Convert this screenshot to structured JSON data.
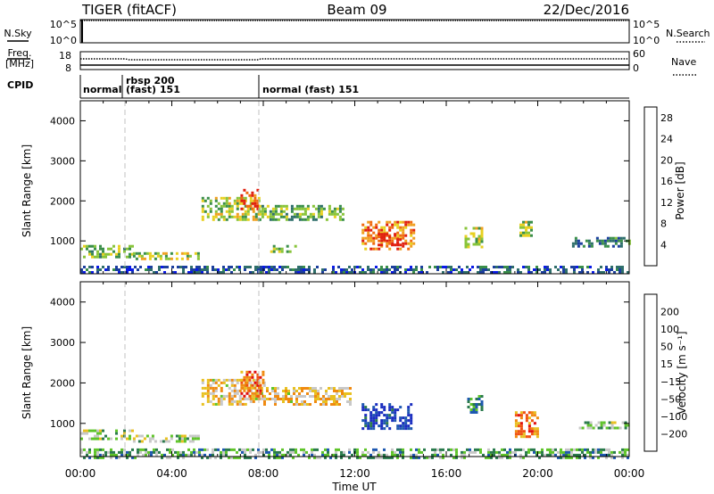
{
  "header": {
    "radar": "TIGER (fitACF)",
    "beam": "Beam 09",
    "date": "22/Dec/2016"
  },
  "top_panels": {
    "nsky_label": "N.Sky",
    "nsky_ticks": [
      "10^5",
      "10^0"
    ],
    "nsearch_label": "N.Search",
    "nsearch_ticks": [
      "10^5",
      "10^0"
    ],
    "freq_label_line1": "Freq.",
    "freq_label_line2": "[MHz]",
    "freq_ticks": [
      "18",
      "8"
    ],
    "nave_label": "Nave",
    "nave_ticks": [
      "60",
      "0"
    ],
    "cpid_label": "CPID",
    "cpid_segments": [
      {
        "label": "normal",
        "start_hour": 0,
        "end_hour": 1.83
      },
      {
        "label": "rbsp 200",
        "label2": "(fast) 151",
        "start_hour": 1.83,
        "end_hour": 8.0
      },
      {
        "label": "normal (fast) 151",
        "start_hour": 8.0,
        "end_hour": 24
      }
    ]
  },
  "chart_data": [
    {
      "type": "heatmap",
      "name": "power",
      "ylabel": "Slant Range [km]",
      "y_ticks": [
        1000,
        2000,
        3000,
        4000
      ],
      "ylim": [
        180,
        4500
      ],
      "xlim_hours": [
        0,
        24
      ],
      "colorbar": {
        "label": "Power [dB]",
        "ticks": [
          4,
          8,
          12,
          16,
          20,
          24,
          28
        ],
        "range": [
          0,
          30
        ],
        "colors": [
          "#0a1ae8",
          "#1c3f9e",
          "#2f6f6b",
          "#3a8f4a",
          "#88c43a",
          "#e8d020",
          "#f0a020",
          "#f06a10",
          "#e02010"
        ]
      },
      "regions": [
        {
          "t0": 0.0,
          "t1": 2.3,
          "r0": 600,
          "r1": 900,
          "level": 0.45
        },
        {
          "t0": 2.3,
          "t1": 5.2,
          "r0": 520,
          "r1": 720,
          "level": 0.55
        },
        {
          "t0": 5.3,
          "t1": 7.8,
          "r0": 1500,
          "r1": 2100,
          "level": 0.55
        },
        {
          "t0": 7.0,
          "t1": 7.8,
          "r0": 1800,
          "r1": 2300,
          "level": 0.9
        },
        {
          "t0": 7.8,
          "t1": 11.5,
          "r0": 1500,
          "r1": 1900,
          "level": 0.45
        },
        {
          "t0": 8.3,
          "t1": 9.4,
          "r0": 700,
          "r1": 900,
          "level": 0.5
        },
        {
          "t0": 12.3,
          "t1": 14.6,
          "r0": 800,
          "r1": 1500,
          "level": 0.8
        },
        {
          "t0": 13.0,
          "t1": 14.0,
          "r0": 900,
          "r1": 1200,
          "level": 1.0
        },
        {
          "t0": 16.8,
          "t1": 17.6,
          "r0": 850,
          "r1": 1350,
          "level": 0.55
        },
        {
          "t0": 19.2,
          "t1": 19.7,
          "r0": 1100,
          "r1": 1500,
          "level": 0.5
        },
        {
          "t0": 21.5,
          "t1": 24.0,
          "r0": 850,
          "r1": 1100,
          "level": 0.3
        },
        {
          "t0": 0.0,
          "t1": 24.0,
          "r0": 180,
          "r1": 380,
          "level": 0.2
        }
      ]
    },
    {
      "type": "heatmap",
      "name": "velocity",
      "ylabel": "Slant Range [km]",
      "y_ticks": [
        1000,
        2000,
        3000,
        4000
      ],
      "ylim": [
        180,
        4500
      ],
      "xlim_hours": [
        0,
        24
      ],
      "colorbar": {
        "label": "Velocity [m s⁻¹]",
        "ticks": [
          "200",
          "100",
          "50",
          "15",
          "−15",
          "−50",
          "−100",
          "−200"
        ],
        "colors": [
          "#1a2ec0",
          "#1e58b0",
          "#2a7a4c",
          "#5fc42a",
          "#c8c8c8",
          "#e8c020",
          "#f08a10",
          "#f05010",
          "#e01010"
        ]
      },
      "regions": [
        {
          "t0": 0.0,
          "t1": 2.3,
          "r0": 650,
          "r1": 850,
          "level": 0.45
        },
        {
          "t0": 2.3,
          "t1": 5.2,
          "r0": 560,
          "r1": 720,
          "level": 0.45
        },
        {
          "t0": 5.3,
          "t1": 8.0,
          "r0": 1500,
          "r1": 2100,
          "level": 0.6
        },
        {
          "t0": 7.0,
          "t1": 8.0,
          "r0": 1700,
          "r1": 2300,
          "level": 0.8
        },
        {
          "t0": 8.0,
          "t1": 11.8,
          "r0": 1500,
          "r1": 1900,
          "level": 0.6
        },
        {
          "t0": 12.3,
          "t1": 14.5,
          "r0": 900,
          "r1": 1500,
          "level": 0.1
        },
        {
          "t0": 16.8,
          "t1": 17.6,
          "r0": 1300,
          "r1": 1700,
          "level": 0.25
        },
        {
          "t0": 19.0,
          "t1": 20.0,
          "r0": 700,
          "r1": 1300,
          "level": 0.75
        },
        {
          "t0": 21.8,
          "t1": 24.0,
          "r0": 900,
          "r1": 1050,
          "level": 0.45
        },
        {
          "t0": 0.0,
          "t1": 24.0,
          "r0": 180,
          "r1": 380,
          "level": 0.35
        }
      ]
    }
  ],
  "x_axis": {
    "label": "Time UT",
    "ticks": [
      "00:00",
      "04:00",
      "08:00",
      "12:00",
      "16:00",
      "20:00",
      "00:00"
    ]
  }
}
